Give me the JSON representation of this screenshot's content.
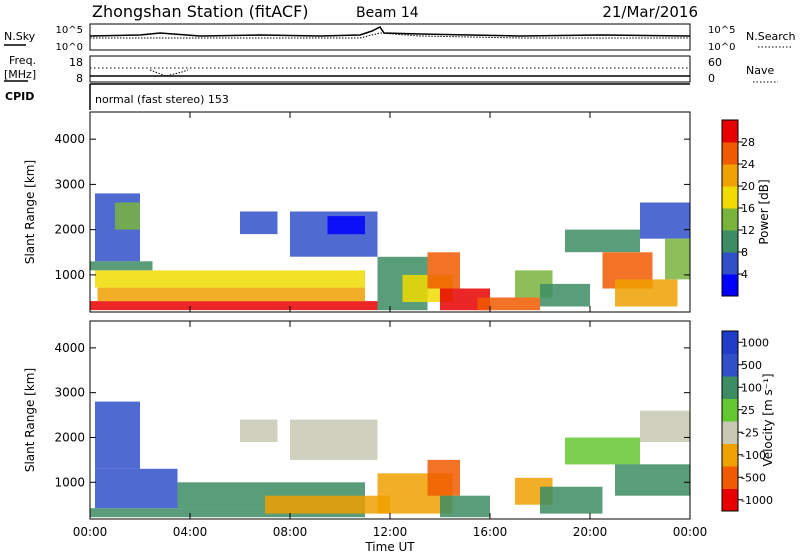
{
  "header": {
    "title": "Zhongshan Station (fitACF)",
    "beam": "Beam 14",
    "date": "21/Mar/2016"
  },
  "noise_panel": {
    "left_label": "N.Sky",
    "right_label": "N.Search",
    "ticks_left": [
      "10^5",
      "10^0"
    ],
    "ticks_right": [
      "10^5",
      "10^0"
    ]
  },
  "freq_panel": {
    "left_label_1": "Freq.",
    "left_label_2": "[MHz]",
    "right_label": "Nave",
    "ticks_left": [
      "18",
      "8"
    ],
    "ticks_right": [
      "60",
      "0"
    ]
  },
  "cpid": {
    "label": "CPID",
    "text": "normal (fast stereo) 153"
  },
  "colors": {
    "power": [
      "#0000ff",
      "#3050c8",
      "#3c8c64",
      "#78b43c",
      "#f0dc00",
      "#f0a000",
      "#f05a00",
      "#e60000"
    ],
    "velocity": [
      "#e60000",
      "#f05a00",
      "#f0a000",
      "#c8c8b4",
      "#64c832",
      "#3c8c64",
      "#3050c8",
      "#1e3cc8"
    ]
  },
  "chart_data": [
    {
      "type": "heatmap",
      "name": "power",
      "ylabel": "Slant Range [km]",
      "xlabel": "",
      "x_ticks": [
        "00:00",
        "04:00",
        "08:00",
        "12:00",
        "16:00",
        "20:00",
        "00:00"
      ],
      "xlim_hours": [
        0,
        24
      ],
      "ylim": [
        180,
        4600
      ],
      "y_ticks": [
        1000,
        2000,
        3000,
        4000
      ],
      "colorbar": {
        "label": "Power [dB]",
        "ticks": [
          "4",
          "8",
          "12",
          "16",
          "20",
          "24",
          "28"
        ]
      },
      "patches": [
        {
          "t0": 0.0,
          "t1": 11.5,
          "r0": 220,
          "r1": 420,
          "level": 7
        },
        {
          "t0": 0.3,
          "t1": 11.0,
          "r0": 420,
          "r1": 720,
          "level": 5
        },
        {
          "t0": 0.2,
          "t1": 11.0,
          "r0": 720,
          "r1": 1100,
          "level": 4
        },
        {
          "t0": 0.0,
          "t1": 2.5,
          "r0": 1100,
          "r1": 1300,
          "level": 2
        },
        {
          "t0": 0.2,
          "t1": 2.0,
          "r0": 1300,
          "r1": 2800,
          "level": 1
        },
        {
          "t0": 1.0,
          "t1": 2.0,
          "r0": 2000,
          "r1": 2600,
          "level": 3
        },
        {
          "t0": 6.0,
          "t1": 7.5,
          "r0": 1900,
          "r1": 2400,
          "level": 1
        },
        {
          "t0": 8.0,
          "t1": 11.5,
          "r0": 1400,
          "r1": 2400,
          "level": 1
        },
        {
          "t0": 9.5,
          "t1": 11.0,
          "r0": 1900,
          "r1": 2300,
          "level": 0
        },
        {
          "t0": 11.5,
          "t1": 13.5,
          "r0": 220,
          "r1": 1400,
          "level": 2
        },
        {
          "t0": 12.5,
          "t1": 14.5,
          "r0": 400,
          "r1": 1000,
          "level": 4
        },
        {
          "t0": 13.5,
          "t1": 14.8,
          "r0": 700,
          "r1": 1500,
          "level": 6
        },
        {
          "t0": 14.0,
          "t1": 16.0,
          "r0": 220,
          "r1": 700,
          "level": 7
        },
        {
          "t0": 15.5,
          "t1": 18.0,
          "r0": 220,
          "r1": 500,
          "level": 6
        },
        {
          "t0": 17.0,
          "t1": 18.5,
          "r0": 500,
          "r1": 1100,
          "level": 3
        },
        {
          "t0": 18.0,
          "t1": 20.0,
          "r0": 300,
          "r1": 800,
          "level": 2
        },
        {
          "t0": 19.0,
          "t1": 22.0,
          "r0": 1500,
          "r1": 2000,
          "level": 2
        },
        {
          "t0": 20.5,
          "t1": 22.5,
          "r0": 700,
          "r1": 1500,
          "level": 6
        },
        {
          "t0": 21.0,
          "t1": 23.5,
          "r0": 300,
          "r1": 900,
          "level": 5
        },
        {
          "t0": 22.0,
          "t1": 24.0,
          "r0": 1800,
          "r1": 2600,
          "level": 1
        },
        {
          "t0": 23.0,
          "t1": 24.0,
          "r0": 900,
          "r1": 1800,
          "level": 3
        }
      ]
    },
    {
      "type": "heatmap",
      "name": "velocity",
      "ylabel": "Slant Range [km]",
      "xlabel": "Time UT",
      "x_ticks": [
        "00:00",
        "04:00",
        "08:00",
        "12:00",
        "16:00",
        "20:00",
        "00:00"
      ],
      "xlim_hours": [
        0,
        24
      ],
      "ylim": [
        180,
        4600
      ],
      "y_ticks": [
        1000,
        2000,
        3000,
        4000
      ],
      "colorbar": {
        "label": "Velocity [m s⁻¹]",
        "ticks": [
          "-1000",
          "-500",
          "-100",
          "-25",
          "25",
          "100",
          "500",
          "1000"
        ]
      },
      "patches": [
        {
          "t0": 0.0,
          "t1": 11.0,
          "r0": 220,
          "r1": 420,
          "level": 5
        },
        {
          "t0": 0.2,
          "t1": 3.5,
          "r0": 420,
          "r1": 1300,
          "level": 6
        },
        {
          "t0": 3.5,
          "t1": 11.0,
          "r0": 420,
          "r1": 1000,
          "level": 5
        },
        {
          "t0": 7.0,
          "t1": 12.0,
          "r0": 300,
          "r1": 700,
          "level": 2
        },
        {
          "t0": 0.2,
          "t1": 2.0,
          "r0": 1300,
          "r1": 2800,
          "level": 6
        },
        {
          "t0": 6.0,
          "t1": 7.5,
          "r0": 1900,
          "r1": 2400,
          "level": 3
        },
        {
          "t0": 8.0,
          "t1": 11.5,
          "r0": 1500,
          "r1": 2400,
          "level": 3
        },
        {
          "t0": 11.5,
          "t1": 14.5,
          "r0": 300,
          "r1": 1200,
          "level": 2
        },
        {
          "t0": 13.5,
          "t1": 14.8,
          "r0": 700,
          "r1": 1500,
          "level": 1
        },
        {
          "t0": 14.0,
          "t1": 16.0,
          "r0": 220,
          "r1": 700,
          "level": 5
        },
        {
          "t0": 17.0,
          "t1": 18.5,
          "r0": 500,
          "r1": 1100,
          "level": 2
        },
        {
          "t0": 18.0,
          "t1": 20.5,
          "r0": 300,
          "r1": 900,
          "level": 5
        },
        {
          "t0": 19.0,
          "t1": 22.0,
          "r0": 1400,
          "r1": 2000,
          "level": 4
        },
        {
          "t0": 21.0,
          "t1": 24.0,
          "r0": 700,
          "r1": 1400,
          "level": 5
        },
        {
          "t0": 22.0,
          "t1": 24.0,
          "r0": 1900,
          "r1": 2600,
          "level": 3
        }
      ]
    }
  ]
}
